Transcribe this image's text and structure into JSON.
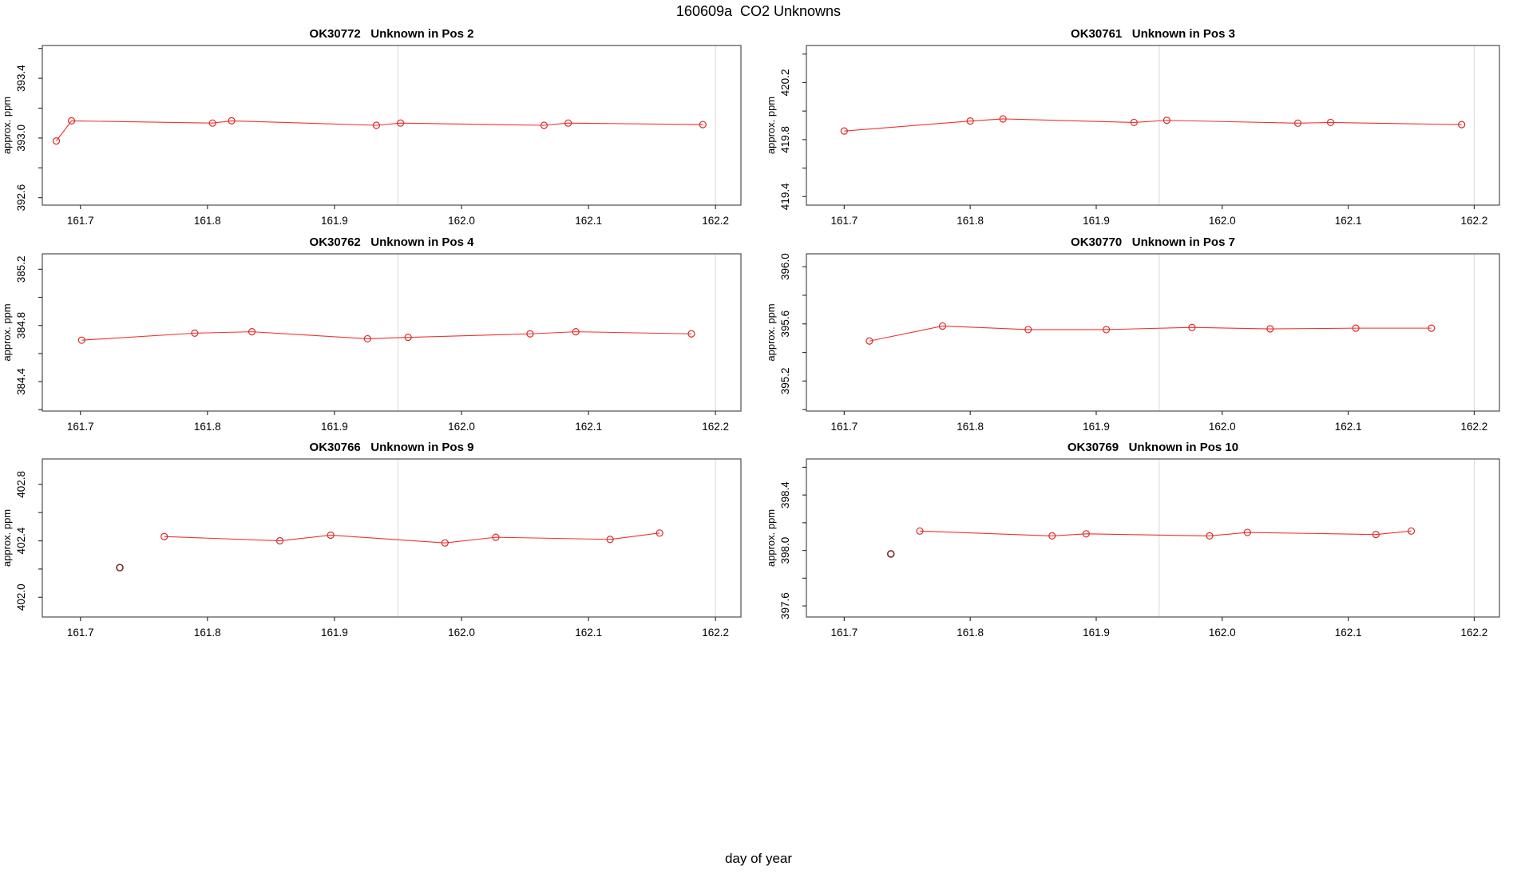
{
  "page_title": "160609a  CO2 Unknowns",
  "shared_xlabel": "day of year",
  "colors": {
    "series": "#f23030",
    "marker": "#e02828",
    "outlier": "#7a2727",
    "gridline": "#d8d8d8",
    "box_border": "#4d4d4d",
    "tick": "#333333",
    "text": "#000000"
  },
  "chart_data": [
    {
      "type": "line",
      "sample_id": "OK30772",
      "title": "OK30772   Unknown in Pos 2",
      "ylabel": "approx. ppm",
      "xlim": [
        161.67,
        162.22
      ],
      "ylim": [
        392.55,
        393.62
      ],
      "xticks": [
        "161.7",
        "161.8",
        "161.9",
        "162.0",
        "162.1",
        "162.2"
      ],
      "yticks": [
        {
          "v": 392.6,
          "label": "392.6"
        },
        {
          "v": 392.8,
          "label": ""
        },
        {
          "v": 393.0,
          "label": "393.0"
        },
        {
          "v": 393.2,
          "label": ""
        },
        {
          "v": 393.4,
          "label": "393.4"
        },
        {
          "v": 393.6,
          "label": ""
        }
      ],
      "vlines": [
        161.95,
        162.2
      ],
      "series": [
        [
          161.681,
          392.98
        ],
        [
          161.693,
          393.115
        ],
        [
          161.804,
          393.1
        ],
        [
          161.819,
          393.115
        ],
        [
          161.933,
          393.085
        ],
        [
          161.952,
          393.1
        ],
        [
          162.065,
          393.085
        ],
        [
          162.084,
          393.1
        ],
        [
          162.19,
          393.09
        ]
      ],
      "outlier": null
    },
    {
      "type": "line",
      "sample_id": "OK30761",
      "title": "OK30761   Unknown in Pos 3",
      "ylabel": "approx. ppm",
      "xlim": [
        161.67,
        162.22
      ],
      "ylim": [
        419.34,
        420.46
      ],
      "xticks": [
        "161.7",
        "161.8",
        "161.9",
        "162.0",
        "162.1",
        "162.2"
      ],
      "yticks": [
        {
          "v": 419.4,
          "label": "419.4"
        },
        {
          "v": 419.6,
          "label": ""
        },
        {
          "v": 419.8,
          "label": "419.8"
        },
        {
          "v": 420.0,
          "label": ""
        },
        {
          "v": 420.2,
          "label": "420.2"
        },
        {
          "v": 420.4,
          "label": ""
        }
      ],
      "vlines": [
        161.95,
        162.2
      ],
      "series": [
        [
          161.7,
          419.86
        ],
        [
          161.8,
          419.93
        ],
        [
          161.826,
          419.945
        ],
        [
          161.93,
          419.92
        ],
        [
          161.956,
          419.935
        ],
        [
          162.06,
          419.915
        ],
        [
          162.086,
          419.92
        ],
        [
          162.19,
          419.905
        ]
      ],
      "outlier": null
    },
    {
      "type": "line",
      "sample_id": "OK30762",
      "title": "OK30762   Unknown in Pos 4",
      "ylabel": "approx. ppm",
      "xlim": [
        161.67,
        162.22
      ],
      "ylim": [
        384.19,
        385.31
      ],
      "xticks": [
        "161.7",
        "161.8",
        "161.9",
        "162.0",
        "162.1",
        "162.2"
      ],
      "yticks": [
        {
          "v": 384.2,
          "label": ""
        },
        {
          "v": 384.4,
          "label": "384.4"
        },
        {
          "v": 384.6,
          "label": ""
        },
        {
          "v": 384.8,
          "label": "384.8"
        },
        {
          "v": 385.0,
          "label": ""
        },
        {
          "v": 385.2,
          "label": "385.2"
        }
      ],
      "vlines": [
        161.95,
        162.2
      ],
      "series": [
        [
          161.701,
          384.695
        ],
        [
          161.79,
          384.745
        ],
        [
          161.835,
          384.755
        ],
        [
          161.926,
          384.705
        ],
        [
          161.958,
          384.715
        ],
        [
          162.054,
          384.74
        ],
        [
          162.09,
          384.755
        ],
        [
          162.181,
          384.74
        ]
      ],
      "outlier": null
    },
    {
      "type": "line",
      "sample_id": "OK30770",
      "title": "OK30770   Unknown in Pos 7",
      "ylabel": "approx. ppm",
      "xlim": [
        161.67,
        162.22
      ],
      "ylim": [
        394.99,
        396.09
      ],
      "xticks": [
        "161.7",
        "161.8",
        "161.9",
        "162.0",
        "162.1",
        "162.2"
      ],
      "yticks": [
        {
          "v": 395.0,
          "label": ""
        },
        {
          "v": 395.2,
          "label": "395.2"
        },
        {
          "v": 395.4,
          "label": ""
        },
        {
          "v": 395.6,
          "label": "395.6"
        },
        {
          "v": 395.8,
          "label": ""
        },
        {
          "v": 396.0,
          "label": "396.0"
        }
      ],
      "vlines": [
        161.95,
        162.2
      ],
      "series": [
        [
          161.72,
          395.48
        ],
        [
          161.778,
          395.585
        ],
        [
          161.846,
          395.56
        ],
        [
          161.908,
          395.56
        ],
        [
          161.976,
          395.575
        ],
        [
          162.038,
          395.565
        ],
        [
          162.106,
          395.57
        ],
        [
          162.166,
          395.57
        ]
      ],
      "outlier": null
    },
    {
      "type": "line",
      "sample_id": "OK30766",
      "title": "OK30766   Unknown in Pos 9",
      "ylabel": "approx. ppm",
      "xlim": [
        161.67,
        162.22
      ],
      "ylim": [
        401.86,
        402.98
      ],
      "xticks": [
        "161.7",
        "161.8",
        "161.9",
        "162.0",
        "162.1",
        "162.2"
      ],
      "yticks": [
        {
          "v": 402.0,
          "label": "402.0"
        },
        {
          "v": 402.2,
          "label": ""
        },
        {
          "v": 402.4,
          "label": "402.4"
        },
        {
          "v": 402.6,
          "label": ""
        },
        {
          "v": 402.8,
          "label": "402.8"
        }
      ],
      "vlines": [
        161.95,
        162.2
      ],
      "series": [
        [
          161.766,
          402.43
        ],
        [
          161.857,
          402.4
        ],
        [
          161.897,
          402.44
        ],
        [
          161.987,
          402.385
        ],
        [
          162.027,
          402.425
        ],
        [
          162.117,
          402.41
        ],
        [
          162.156,
          402.455
        ]
      ],
      "outlier": [
        161.731,
        402.21
      ]
    },
    {
      "type": "line",
      "sample_id": "OK30769",
      "title": "OK30769   Unknown in Pos 10",
      "ylabel": "approx. ppm",
      "xlim": [
        161.67,
        162.22
      ],
      "ylim": [
        397.52,
        398.66
      ],
      "xticks": [
        "161.7",
        "161.8",
        "161.9",
        "162.0",
        "162.1",
        "162.2"
      ],
      "yticks": [
        {
          "v": 397.6,
          "label": "397.6"
        },
        {
          "v": 397.8,
          "label": ""
        },
        {
          "v": 398.0,
          "label": "398.0"
        },
        {
          "v": 398.2,
          "label": ""
        },
        {
          "v": 398.4,
          "label": "398.4"
        },
        {
          "v": 398.6,
          "label": ""
        }
      ],
      "vlines": [
        161.95,
        162.2
      ],
      "series": [
        [
          161.76,
          398.14
        ],
        [
          161.865,
          398.105
        ],
        [
          161.892,
          398.12
        ],
        [
          161.99,
          398.105
        ],
        [
          162.02,
          398.13
        ],
        [
          162.122,
          398.115
        ],
        [
          162.15,
          398.14
        ]
      ],
      "outlier": [
        161.737,
        397.975
      ]
    }
  ]
}
